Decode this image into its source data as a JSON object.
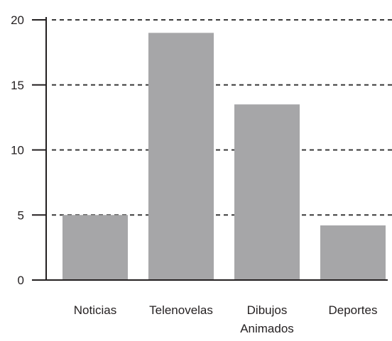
{
  "chart_data": {
    "type": "bar",
    "categories": [
      "Noticias",
      "Telenovelas",
      "Dibujos Animados",
      "Deportes"
    ],
    "values": [
      5,
      19,
      13.5,
      4.2
    ],
    "color": "#a6a6a8",
    "ylim": [
      0,
      20
    ],
    "yticks": [
      0,
      5,
      10,
      15,
      20
    ],
    "grid": true
  }
}
